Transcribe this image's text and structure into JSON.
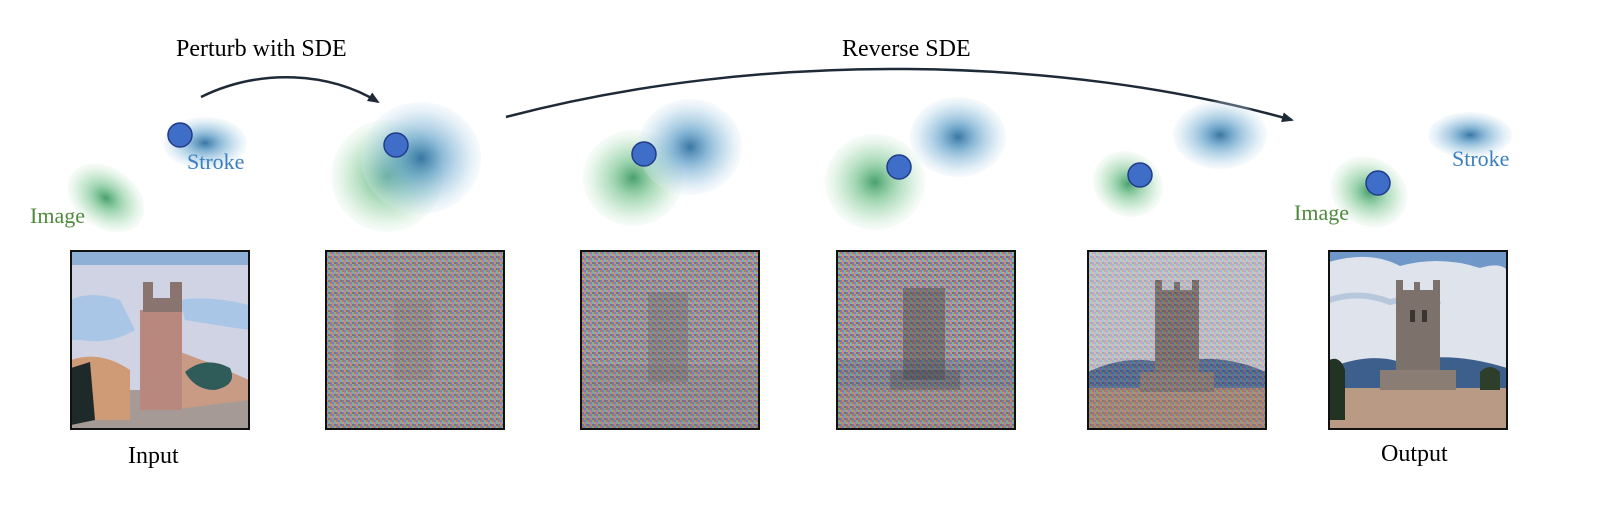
{
  "labels": {
    "perturb": "Perturb with SDE",
    "reverse": "Reverse SDE",
    "image": "Image",
    "stroke": "Stroke",
    "input": "Input",
    "output": "Output"
  },
  "colors": {
    "image_dist": "#5cb87a",
    "stroke_dist": "#3f8bbd",
    "image_text": "#4e8a3c",
    "stroke_text": "#3a7fc0",
    "point_fill": "#3f6ec8",
    "point_stroke": "#223b8a",
    "arrow": "#1f2a38"
  },
  "panels": [
    {
      "name": "input",
      "noise_level": 0.0,
      "icon": "stroke-painting-icon"
    },
    {
      "name": "perturbed",
      "noise_level": 1.0,
      "icon": "noise-image-icon"
    },
    {
      "name": "step-1",
      "noise_level": 0.85,
      "icon": "noise-image-icon"
    },
    {
      "name": "step-2",
      "noise_level": 0.65,
      "icon": "noise-image-icon"
    },
    {
      "name": "step-3",
      "noise_level": 0.35,
      "icon": "noise-image-icon"
    },
    {
      "name": "output",
      "noise_level": 0.0,
      "icon": "realistic-image-icon"
    }
  ]
}
